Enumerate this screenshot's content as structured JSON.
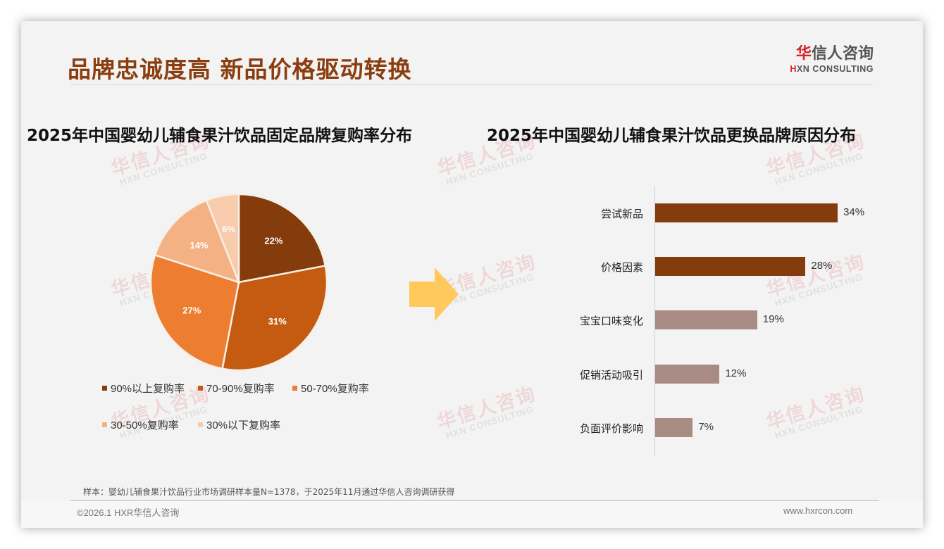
{
  "header": {
    "title": "品牌忠诚度高 新品价格驱动转换",
    "logo_cn_prefix": "华",
    "logo_cn_rest": "信人咨询",
    "logo_en_prefix": "H",
    "logo_en_rest": "XN CONSULTING"
  },
  "watermark": {
    "cn": "华信人咨询",
    "en": "HXN CONSULTING"
  },
  "left_chart": {
    "title": "2025年中国婴幼儿辅食果汁饮品固定品牌复购率分布"
  },
  "right_chart": {
    "title": "2025年中国婴幼儿辅食果汁饮品更换品牌原因分布"
  },
  "arrow": {
    "icon": "right-arrow-icon",
    "color": "#ffc95c"
  },
  "chart_data": [
    {
      "type": "pie",
      "title": "2025年中国婴幼儿辅食果汁饮品固定品牌复购率分布",
      "categories": [
        "90%以上复购率",
        "70-90%复购率",
        "50-70%复购率",
        "30-50%复购率",
        "30%以下复购率"
      ],
      "values": [
        22,
        31,
        27,
        14,
        6
      ],
      "labels": [
        "22%",
        "31%",
        "27%",
        "14%",
        "6%"
      ],
      "colors": [
        "#843c0c",
        "#c55a11",
        "#ed7d31",
        "#f4b183",
        "#f8cbad"
      ],
      "legend_position": "bottom",
      "start_angle": "12 o'clock, clockwise"
    },
    {
      "type": "bar",
      "orientation": "horizontal",
      "title": "2025年中国婴幼儿辅食果汁饮品更换品牌原因分布",
      "categories": [
        "尝试新品",
        "价格因素",
        "宝宝口味变化",
        "促销活动吸引",
        "负面评价影响"
      ],
      "values": [
        34,
        28,
        19,
        12,
        7
      ],
      "labels": [
        "34%",
        "28%",
        "19%",
        "12%",
        "7%"
      ],
      "colors": [
        "#843c0c",
        "#843c0c",
        "#a88b82",
        "#a88b82",
        "#a88b82"
      ],
      "xlabel": "",
      "ylabel": "",
      "grid": false
    }
  ],
  "footer": {
    "footnote": "样本：婴幼儿辅食果汁饮品行业市场调研样本量N=1378，于2025年11月通过华信人咨询调研获得",
    "copyright": "©2026.1 HXR华信人咨询",
    "website": "www.hxrcon.com"
  }
}
